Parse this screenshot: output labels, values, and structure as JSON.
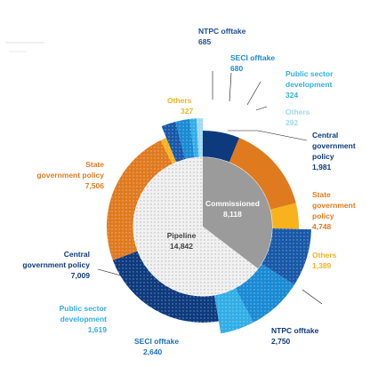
{
  "chart_data": {
    "type": "pie",
    "title": "",
    "inner_ring": {
      "name": "",
      "segments": [
        {
          "label": "Commissioned",
          "value": "8,118",
          "amount": 8118,
          "color": "#9b9b9b"
        },
        {
          "label": "Pipeline",
          "value": "14,842",
          "amount": 14842,
          "color": "#f1f1f1"
        }
      ]
    },
    "outer_ring": {
      "segments": [
        {
          "group": "Commissioned",
          "label": "Central government policy",
          "value": "1,981",
          "amount": 1981,
          "color": "#0d3a7d"
        },
        {
          "group": "Commissioned",
          "label": "State government policy",
          "value": "4,748",
          "amount": 4748,
          "color": "#e07a1f"
        },
        {
          "group": "Commissioned",
          "label": "Others",
          "value": "1,389",
          "amount": 1389,
          "color": "#f7b21e"
        },
        {
          "group": "Pipeline",
          "label": "NTPC offtake",
          "value": "2,750",
          "amount": 2750,
          "color": "#1858a8"
        },
        {
          "group": "Pipeline",
          "label": "SECI offtake",
          "value": "2,640",
          "amount": 2640,
          "color": "#1a8ad4"
        },
        {
          "group": "Pipeline",
          "label": "Public sector development",
          "value": "1,619",
          "amount": 1619,
          "color": "#31aee6"
        },
        {
          "group": "Pipeline",
          "label": "Central government policy",
          "value": "7,009",
          "amount": 7009,
          "color": "#0d3a7d"
        },
        {
          "group": "Pipeline",
          "label": "State government policy",
          "value": "7,506",
          "amount": 7506,
          "color": "#e07a1f"
        },
        {
          "group": "Pipeline",
          "label": "Others",
          "value": "327",
          "amount": 327,
          "color": "#f7b21e"
        },
        {
          "group": "Pipeline",
          "label": "NTPC offtake",
          "value": "685",
          "amount": 685,
          "color": "#1858a8"
        },
        {
          "group": "Pipeline",
          "label": "SECI offtake",
          "value": "680",
          "amount": 680,
          "color": "#1a8ad4"
        },
        {
          "group": "Pipeline",
          "label": "Public sector development",
          "value": "324",
          "amount": 324,
          "color": "#31aee6"
        },
        {
          "group": "Pipeline",
          "label": "Others",
          "value": "292",
          "amount": 292,
          "color": "#9ed8f2"
        }
      ]
    },
    "labels": {
      "ntpc_top": {
        "name": "NTPC offtake",
        "value": "685"
      },
      "seci_top": {
        "name": "SECI offtake",
        "value": "680"
      },
      "public_top": {
        "name_line1": "Public sector",
        "name_line2": "development",
        "value": "324"
      },
      "others_top": {
        "name": "Others",
        "value": "292"
      },
      "others_left": {
        "name": "Others",
        "value": "327"
      },
      "central_right": {
        "name_line1": "Central",
        "name_line2": "government",
        "name_line3": "policy",
        "value": "1,981"
      },
      "state_right": {
        "name_line1": "State",
        "name_line2": "government",
        "name_line3": "policy",
        "value": "4,748"
      },
      "others_right": {
        "name": "Others",
        "value": "1,389"
      },
      "ntpc_bottom": {
        "name": "NTPC offtake",
        "value": "2,750"
      },
      "seci_bottom": {
        "name": "SECI offtake",
        "value": "2,640"
      },
      "public_left": {
        "name_line1": "Public sector",
        "name_line2": "development",
        "value": "1,619"
      },
      "central_left": {
        "name_line1": "Central",
        "name_line2": "government policy",
        "value": "7,009"
      },
      "state_left": {
        "name_line1": "State",
        "name_line2": "government policy",
        "value": "7,506"
      },
      "commissioned": {
        "name": "Commissioned",
        "value": "8,118"
      },
      "pipeline": {
        "name": "Pipeline",
        "value": "14,842"
      }
    },
    "colors": {
      "navy": "#0d3a7d",
      "orange": "#e07a1f",
      "yellow": "#f7b21e",
      "blue": "#1858a8",
      "mid_blue": "#1a8ad4",
      "light_blue": "#31aee6",
      "pale_blue": "#9ed8f2",
      "grey": "#9b9b9b",
      "pipeline_fill": "#f1f1f1"
    }
  }
}
